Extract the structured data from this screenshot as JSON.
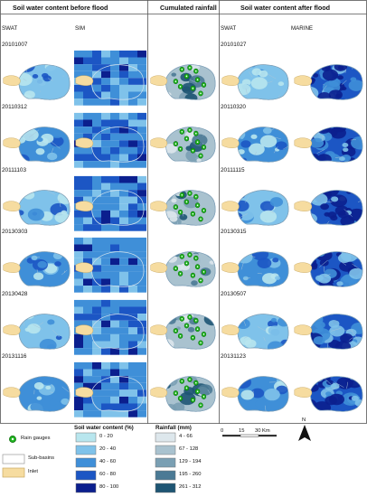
{
  "headers": {
    "before": "Soil water content before flood",
    "rain": "Cumulated rainfall",
    "after": "Soil water content after flood"
  },
  "subheaders": {
    "swat_left": "SWAT",
    "sim": "SIM",
    "swat_right": "SWAT",
    "marine": "MARINE"
  },
  "rows": [
    {
      "before_date": "20101007",
      "after_date": "20101027"
    },
    {
      "before_date": "20110312",
      "after_date": "20110320"
    },
    {
      "before_date": "20111103",
      "after_date": "20111115"
    },
    {
      "before_date": "20130303",
      "after_date": "20130315"
    },
    {
      "before_date": "20130428",
      "after_date": "20130507"
    },
    {
      "before_date": "20131116",
      "after_date": "20131123"
    }
  ],
  "legend": {
    "symbols": [
      {
        "label": "Rain gauges",
        "icon": "green-dot"
      },
      {
        "label": "Sub-basins",
        "icon": "white-box"
      },
      {
        "label": "Inlet",
        "icon": "tan-box"
      }
    ],
    "soil": {
      "title": "Soil water content (%)",
      "classes": [
        {
          "label": "0 - 20",
          "color": "#b8e6ee"
        },
        {
          "label": "20 - 40",
          "color": "#7fc2ea"
        },
        {
          "label": "40 - 60",
          "color": "#3f8fd8"
        },
        {
          "label": "60 - 80",
          "color": "#1c56c4"
        },
        {
          "label": "80 - 100",
          "color": "#0b1f8e"
        }
      ]
    },
    "rain": {
      "title": "Rainfall (mm)",
      "classes": [
        {
          "label": "4 - 66",
          "color": "#dde7ec"
        },
        {
          "label": "67 - 128",
          "color": "#a9c2cf"
        },
        {
          "label": "129 - 194",
          "color": "#7a9fb3"
        },
        {
          "label": "195 - 260",
          "color": "#4b7a95"
        },
        {
          "label": "261 - 312",
          "color": "#1e5573"
        }
      ]
    },
    "scale": {
      "ticks": [
        "0",
        "15",
        "30 Km"
      ]
    },
    "north": "N"
  },
  "colors": {
    "gauge": "#1fb51f",
    "inlet": "#f6dca0",
    "boundary": "#7fa0b8",
    "sim_cell_1": "#3f8fd8",
    "sim_cell_2": "#1c56c4",
    "sim_cell_3": "#7fc2ea"
  }
}
